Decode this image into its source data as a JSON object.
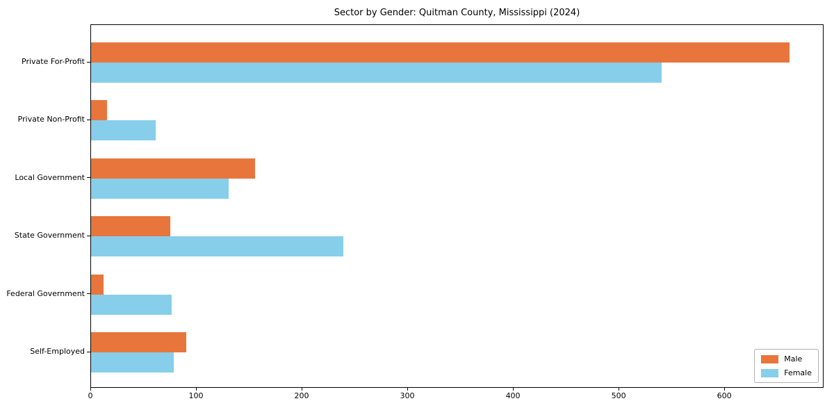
{
  "chart_data": {
    "type": "bar",
    "orientation": "horizontal",
    "title": "Sector by Gender: Quitman County, Mississippi (2024)",
    "categories": [
      "Private For-Profit",
      "Private Non-Profit",
      "Local Government",
      "State Government",
      "Federal Government",
      "Self-Employed"
    ],
    "series": [
      {
        "name": "Male",
        "color": "#e8763c",
        "values": [
          661,
          15,
          155,
          75,
          12,
          90
        ]
      },
      {
        "name": "Female",
        "color": "#87ceeb",
        "values": [
          540,
          61,
          130,
          239,
          76,
          78
        ]
      }
    ],
    "xlabel": "",
    "ylabel": "",
    "xlim": [
      0,
      694
    ],
    "xticks": [
      0,
      100,
      200,
      300,
      400,
      500,
      600
    ],
    "grid": false,
    "legend_position": "lower right"
  }
}
